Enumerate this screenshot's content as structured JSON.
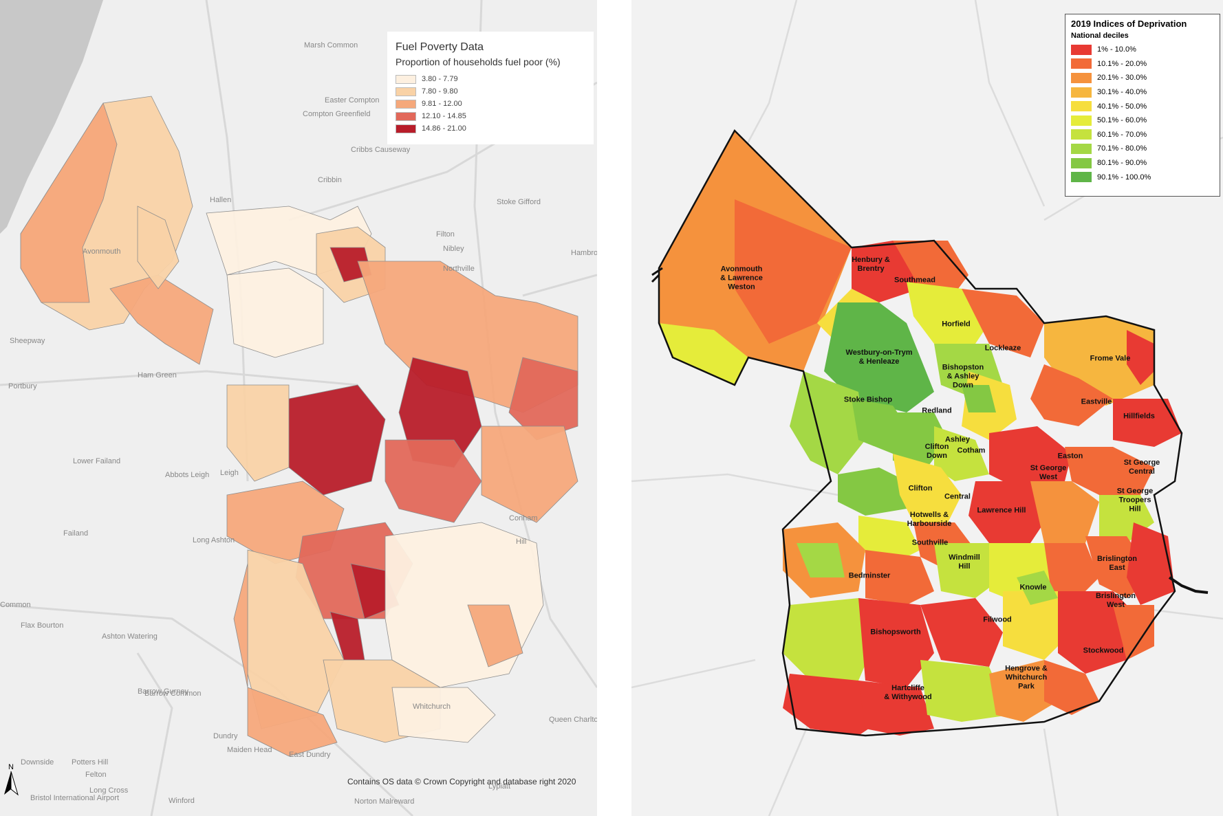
{
  "left_map": {
    "legend": {
      "title": "Fuel Poverty Data",
      "subtitle": "Proportion of households fuel poor (%)",
      "classes": [
        {
          "label": "3.80 - 7.79",
          "color": "#fdf0e0"
        },
        {
          "label": "7.80 - 9.80",
          "color": "#f9d2a6"
        },
        {
          "label": "9.81 - 12.00",
          "color": "#f5a87b"
        },
        {
          "label": "12.10 - 14.85",
          "color": "#e2685a"
        },
        {
          "label": "14.86 - 21.00",
          "color": "#b81d2a"
        }
      ]
    },
    "credit": "Contains OS data © Crown Copyright and database right 2020",
    "north_label": "N",
    "place_labels": [
      "Marsh Common",
      "Easter Compton",
      "Compton Greenfield",
      "Cribbs Causeway",
      "Cribbin",
      "Hallen",
      "Stoke Gifford",
      "Filton",
      "Nibley",
      "Northville",
      "Avonmouth",
      "Sheepway",
      "Portbury",
      "Ham Green",
      "Abbots Leigh",
      "Lower Failand",
      "Leigh",
      "Failand",
      "Long Ashton",
      "Common",
      "Flax Bourton",
      "Ashton Watering",
      "Barrow Gurney",
      "Barrow Common",
      "Dundry",
      "Maiden Head",
      "East Dundry",
      "Potters Hill",
      "Felton",
      "Long Cross",
      "Winford",
      "Bristol International Airport",
      "Norton Malreward",
      "Whitchurch",
      "Queen Charlton",
      "Conham",
      "Hill",
      "Lypiatt",
      "Downside",
      "Hambrook"
    ]
  },
  "right_map": {
    "legend": {
      "title": "2019 Indices of Deprivation",
      "subtitle": "National deciles",
      "classes": [
        {
          "label": "1% - 10.0%",
          "color": "#e83a33"
        },
        {
          "label": "10.1% - 20.0%",
          "color": "#f26a38"
        },
        {
          "label": "20.1% - 30.0%",
          "color": "#f5923d"
        },
        {
          "label": "30.1% - 40.0%",
          "color": "#f6b63f"
        },
        {
          "label": "40.1% - 50.0%",
          "color": "#f6de3e"
        },
        {
          "label": "50.1% - 60.0%",
          "color": "#e5ec3a"
        },
        {
          "label": "60.1% - 70.0%",
          "color": "#c5e23e"
        },
        {
          "label": "70.1% - 80.0%",
          "color": "#a4d845"
        },
        {
          "label": "80.1% - 90.0%",
          "color": "#84c843"
        },
        {
          "label": "90.1% - 100.0%",
          "color": "#5fb548"
        }
      ]
    },
    "wards": [
      {
        "name": "Avonmouth\n& Lawrence\nWeston"
      },
      {
        "name": "Henbury &\nBrentry"
      },
      {
        "name": "Southmead"
      },
      {
        "name": "Horfield"
      },
      {
        "name": "Lockleaze"
      },
      {
        "name": "Westbury-on-Trym\n& Henleaze"
      },
      {
        "name": "Bishopston\n& Ashley\nDown"
      },
      {
        "name": "Frome Vale"
      },
      {
        "name": "Stoke Bishop"
      },
      {
        "name": "Redland"
      },
      {
        "name": "Eastville"
      },
      {
        "name": "Hillfields"
      },
      {
        "name": "Ashley"
      },
      {
        "name": "Clifton\nDown"
      },
      {
        "name": "Cotham"
      },
      {
        "name": "Easton"
      },
      {
        "name": "St George\nWest"
      },
      {
        "name": "St George\nCentral"
      },
      {
        "name": "Clifton"
      },
      {
        "name": "Central"
      },
      {
        "name": "St George\nTroopers\nHill"
      },
      {
        "name": "Lawrence Hill"
      },
      {
        "name": "Hotwells &\nHarbourside"
      },
      {
        "name": "Southville"
      },
      {
        "name": "Windmill\nHill"
      },
      {
        "name": "Brislington\nEast"
      },
      {
        "name": "Bedminster"
      },
      {
        "name": "Knowle"
      },
      {
        "name": "Brislington\nWest"
      },
      {
        "name": "Filwood"
      },
      {
        "name": "Bishopsworth"
      },
      {
        "name": "Stockwood"
      },
      {
        "name": "Hengrove &\nWhitchurch\nPark"
      },
      {
        "name": "Hartcliffe\n& Withywood"
      }
    ]
  }
}
